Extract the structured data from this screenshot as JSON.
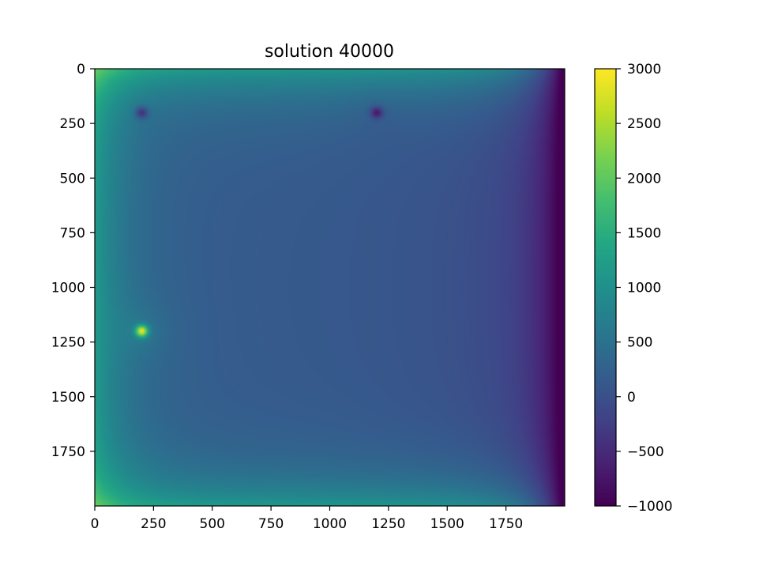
{
  "chart_data": {
    "type": "heatmap",
    "title": "solution 40000",
    "xlabel": "",
    "ylabel": "",
    "xlim": [
      0,
      2000
    ],
    "ylim": [
      2000,
      0
    ],
    "y_axis_inverted": true,
    "xticks": [
      0,
      250,
      500,
      750,
      1000,
      1250,
      1500,
      1750
    ],
    "xtick_labels": [
      "0",
      "250",
      "500",
      "750",
      "1000",
      "1250",
      "1500",
      "1750"
    ],
    "yticks": [
      0,
      250,
      500,
      750,
      1000,
      1250,
      1500,
      1750
    ],
    "ytick_labels": [
      "0",
      "250",
      "500",
      "750",
      "1000",
      "1250",
      "1500",
      "1750"
    ],
    "colormap": "viridis",
    "colorbar": {
      "vmin": -1000,
      "vmax": 3000,
      "ticks": [
        -1000,
        -500,
        0,
        500,
        1000,
        1500,
        2000,
        2500,
        3000
      ],
      "tick_labels": [
        "−1000",
        "−500",
        "0",
        "500",
        "1000",
        "1500",
        "2000",
        "2500",
        "3000"
      ]
    },
    "field_features": [
      {
        "kind": "background",
        "value": 150
      },
      {
        "kind": "boundary",
        "edge": "left",
        "value": 1150
      },
      {
        "kind": "boundary",
        "edge": "top",
        "value": 1150
      },
      {
        "kind": "boundary",
        "edge": "bottom",
        "value": 1150
      },
      {
        "kind": "boundary",
        "edge": "right",
        "value": -1000
      },
      {
        "kind": "source",
        "x": 200,
        "y": 200,
        "value": -900
      },
      {
        "kind": "source",
        "x": 1200,
        "y": 200,
        "value": -900
      },
      {
        "kind": "source",
        "x": 200,
        "y": 1200,
        "value": 2700
      }
    ],
    "grid": false
  }
}
